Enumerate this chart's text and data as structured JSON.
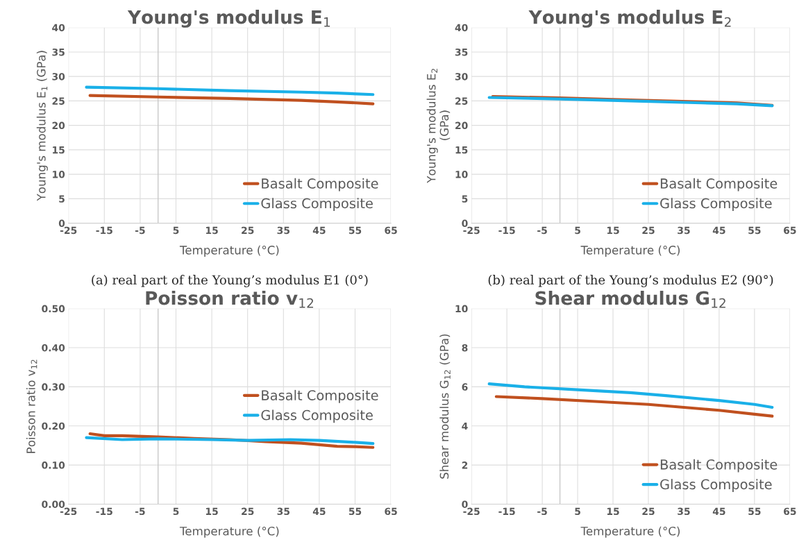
{
  "chart_data": [
    {
      "type": "line",
      "title": "Young's modulus E$_{1}$",
      "xlabel": "Temperature (°C)",
      "ylabel": "Young's modulus E$_{1}$ (GPa)",
      "xlim": [
        -25,
        65
      ],
      "xticks": [
        -25,
        -15,
        -5,
        5,
        15,
        25,
        35,
        45,
        55,
        65
      ],
      "ylim": [
        0,
        40
      ],
      "yticks": [
        0,
        5,
        10,
        15,
        20,
        25,
        30,
        35,
        40
      ],
      "grid": true,
      "legend": "bottom right",
      "marker": "none",
      "line_style": "solid",
      "ref_lines": [
        {
          "axis": "x",
          "value": 0,
          "color": "#c8c8c8"
        }
      ],
      "annotations": [
        "(a) real part of the Young’s modulus E1 (0°)"
      ],
      "series": [
        {
          "name": "Basalt Composite",
          "color": "#c0501f",
          "x": [
            -19,
            0,
            20,
            40,
            50,
            60
          ],
          "values": [
            26.1,
            25.8,
            25.5,
            25.1,
            24.8,
            24.4
          ]
        },
        {
          "name": "Glass Composite",
          "color": "#1ab0e8",
          "x": [
            -20,
            0,
            20,
            40,
            50,
            60
          ],
          "values": [
            27.8,
            27.5,
            27.1,
            26.8,
            26.6,
            26.3
          ]
        }
      ]
    },
    {
      "type": "line",
      "title": "Young's modulus E$_{2}$",
      "xlabel": "Temperature (°C)",
      "ylabel": "Young's modulus E$_{2}$\n(GPa)",
      "xlim": [
        -25,
        65
      ],
      "xticks": [
        -25,
        -15,
        -5,
        5,
        15,
        25,
        35,
        45,
        55,
        65
      ],
      "ylim": [
        0,
        40
      ],
      "yticks": [
        0,
        5,
        10,
        15,
        20,
        25,
        30,
        35,
        40
      ],
      "grid": true,
      "legend": "bottom right",
      "marker": "none",
      "line_style": "solid",
      "ref_lines": [
        {
          "axis": "x",
          "value": 0,
          "color": "#c8c8c8"
        }
      ],
      "annotations": [
        "(b) real part of the Young’s modulus E2 (90°)"
      ],
      "series": [
        {
          "name": "Basalt Composite",
          "color": "#c0501f",
          "x": [
            -19,
            0,
            20,
            40,
            50,
            60
          ],
          "values": [
            25.9,
            25.6,
            25.2,
            24.8,
            24.6,
            24.1
          ]
        },
        {
          "name": "Glass Composite",
          "color": "#1ab0e8",
          "x": [
            -20,
            0,
            20,
            40,
            50,
            60
          ],
          "values": [
            25.7,
            25.4,
            25.0,
            24.6,
            24.4,
            24.0
          ]
        }
      ]
    },
    {
      "type": "line",
      "title": "Poisson ratio v$_{12}$",
      "xlabel": "Temperature (°C)",
      "ylabel": "Poisson ratio v$_{12}$",
      "xlim": [
        -25,
        65
      ],
      "xticks": [
        -25,
        -15,
        -5,
        5,
        15,
        25,
        35,
        45,
        55,
        65
      ],
      "ylim": [
        0,
        0.5
      ],
      "yticks": [
        {
          "value": 0,
          "label": "0.00"
        },
        {
          "value": 0.1,
          "label": "0.10"
        },
        {
          "value": 0.2,
          "label": "0.20"
        },
        {
          "value": 0.3,
          "label": "0.30"
        },
        {
          "value": 0.4,
          "label": "0.40"
        },
        {
          "value": 0.5,
          "label": "0.50"
        }
      ],
      "grid": true,
      "legend": "right",
      "marker": "none",
      "line_style": "solid",
      "ref_lines": [
        {
          "axis": "x",
          "value": 0,
          "color": "#c8c8c8"
        }
      ],
      "series": [
        {
          "name": "Basalt Composite",
          "color": "#c0501f",
          "x": [
            -19,
            -15,
            -10,
            0,
            10,
            20,
            30,
            40,
            50,
            55,
            60
          ],
          "values": [
            0.18,
            0.175,
            0.175,
            0.172,
            0.168,
            0.165,
            0.16,
            0.156,
            0.148,
            0.147,
            0.145
          ]
        },
        {
          "name": "Glass Composite",
          "color": "#1ab0e8",
          "x": [
            -20,
            -10,
            0,
            15,
            25,
            37,
            45,
            55,
            60
          ],
          "values": [
            0.17,
            0.165,
            0.167,
            0.165,
            0.163,
            0.165,
            0.163,
            0.158,
            0.155
          ]
        }
      ]
    },
    {
      "type": "line",
      "title": "Shear modulus G$_{12}$",
      "xlabel": "Temperature (°C)",
      "ylabel": "Shear modulus G$_{12}$ (GPa)",
      "xlim": [
        -25,
        65
      ],
      "xticks": [
        -25,
        -15,
        -5,
        5,
        15,
        25,
        35,
        45,
        55,
        65
      ],
      "ylim": [
        0,
        10
      ],
      "yticks": [
        0,
        2,
        4,
        6,
        8,
        10
      ],
      "grid": true,
      "legend": "bottom right",
      "marker": "none",
      "line_style": "solid",
      "ref_lines": [
        {
          "axis": "x",
          "value": 0,
          "color": "#c8c8c8"
        }
      ],
      "series": [
        {
          "name": "Basalt Composite",
          "color": "#c0501f",
          "x": [
            -18,
            -5,
            10,
            25,
            35,
            45,
            55,
            60
          ],
          "values": [
            5.5,
            5.4,
            5.25,
            5.1,
            4.95,
            4.8,
            4.6,
            4.5
          ]
        },
        {
          "name": "Glass Composite",
          "color": "#1ab0e8",
          "x": [
            -20,
            -10,
            5,
            20,
            30,
            45,
            55,
            60
          ],
          "values": [
            6.15,
            6.0,
            5.85,
            5.7,
            5.55,
            5.3,
            5.1,
            4.95
          ]
        }
      ]
    }
  ]
}
